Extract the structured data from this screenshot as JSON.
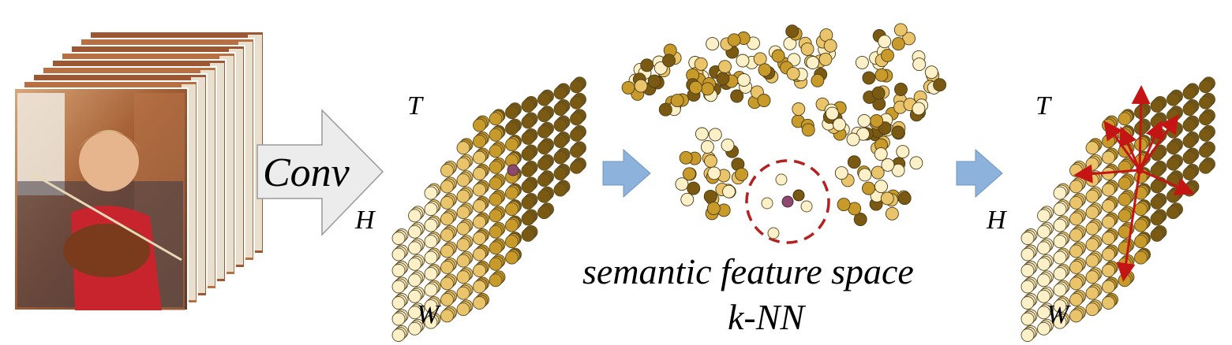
{
  "conv": {
    "label": "Conv"
  },
  "grid_left": {
    "t_label": "T",
    "h_label": "H",
    "w_label": "W"
  },
  "feature_space": {
    "caption": "semantic feature space",
    "subcaption": "k-NN"
  },
  "grid_right": {
    "t_label": "T",
    "h_label": "H",
    "w_label": "W"
  },
  "colors": {
    "arrow_blue": "#8db3dd",
    "arrow_gray": "#ececec",
    "query_purple": "#8e4a6e",
    "knn_circle": "#b52020",
    "relation_arrow": "#c41414",
    "dot_light": "#fbf0c8",
    "dot_mid": "#e9c46a",
    "dot_gold": "#c89a2a",
    "dot_dark": "#7a5a12"
  },
  "icons": [
    "video-frame-stack-icon",
    "conv-arrow-icon",
    "transition-arrow-icon",
    "knn-neighborhood-icon",
    "relation-arrows-icon"
  ]
}
